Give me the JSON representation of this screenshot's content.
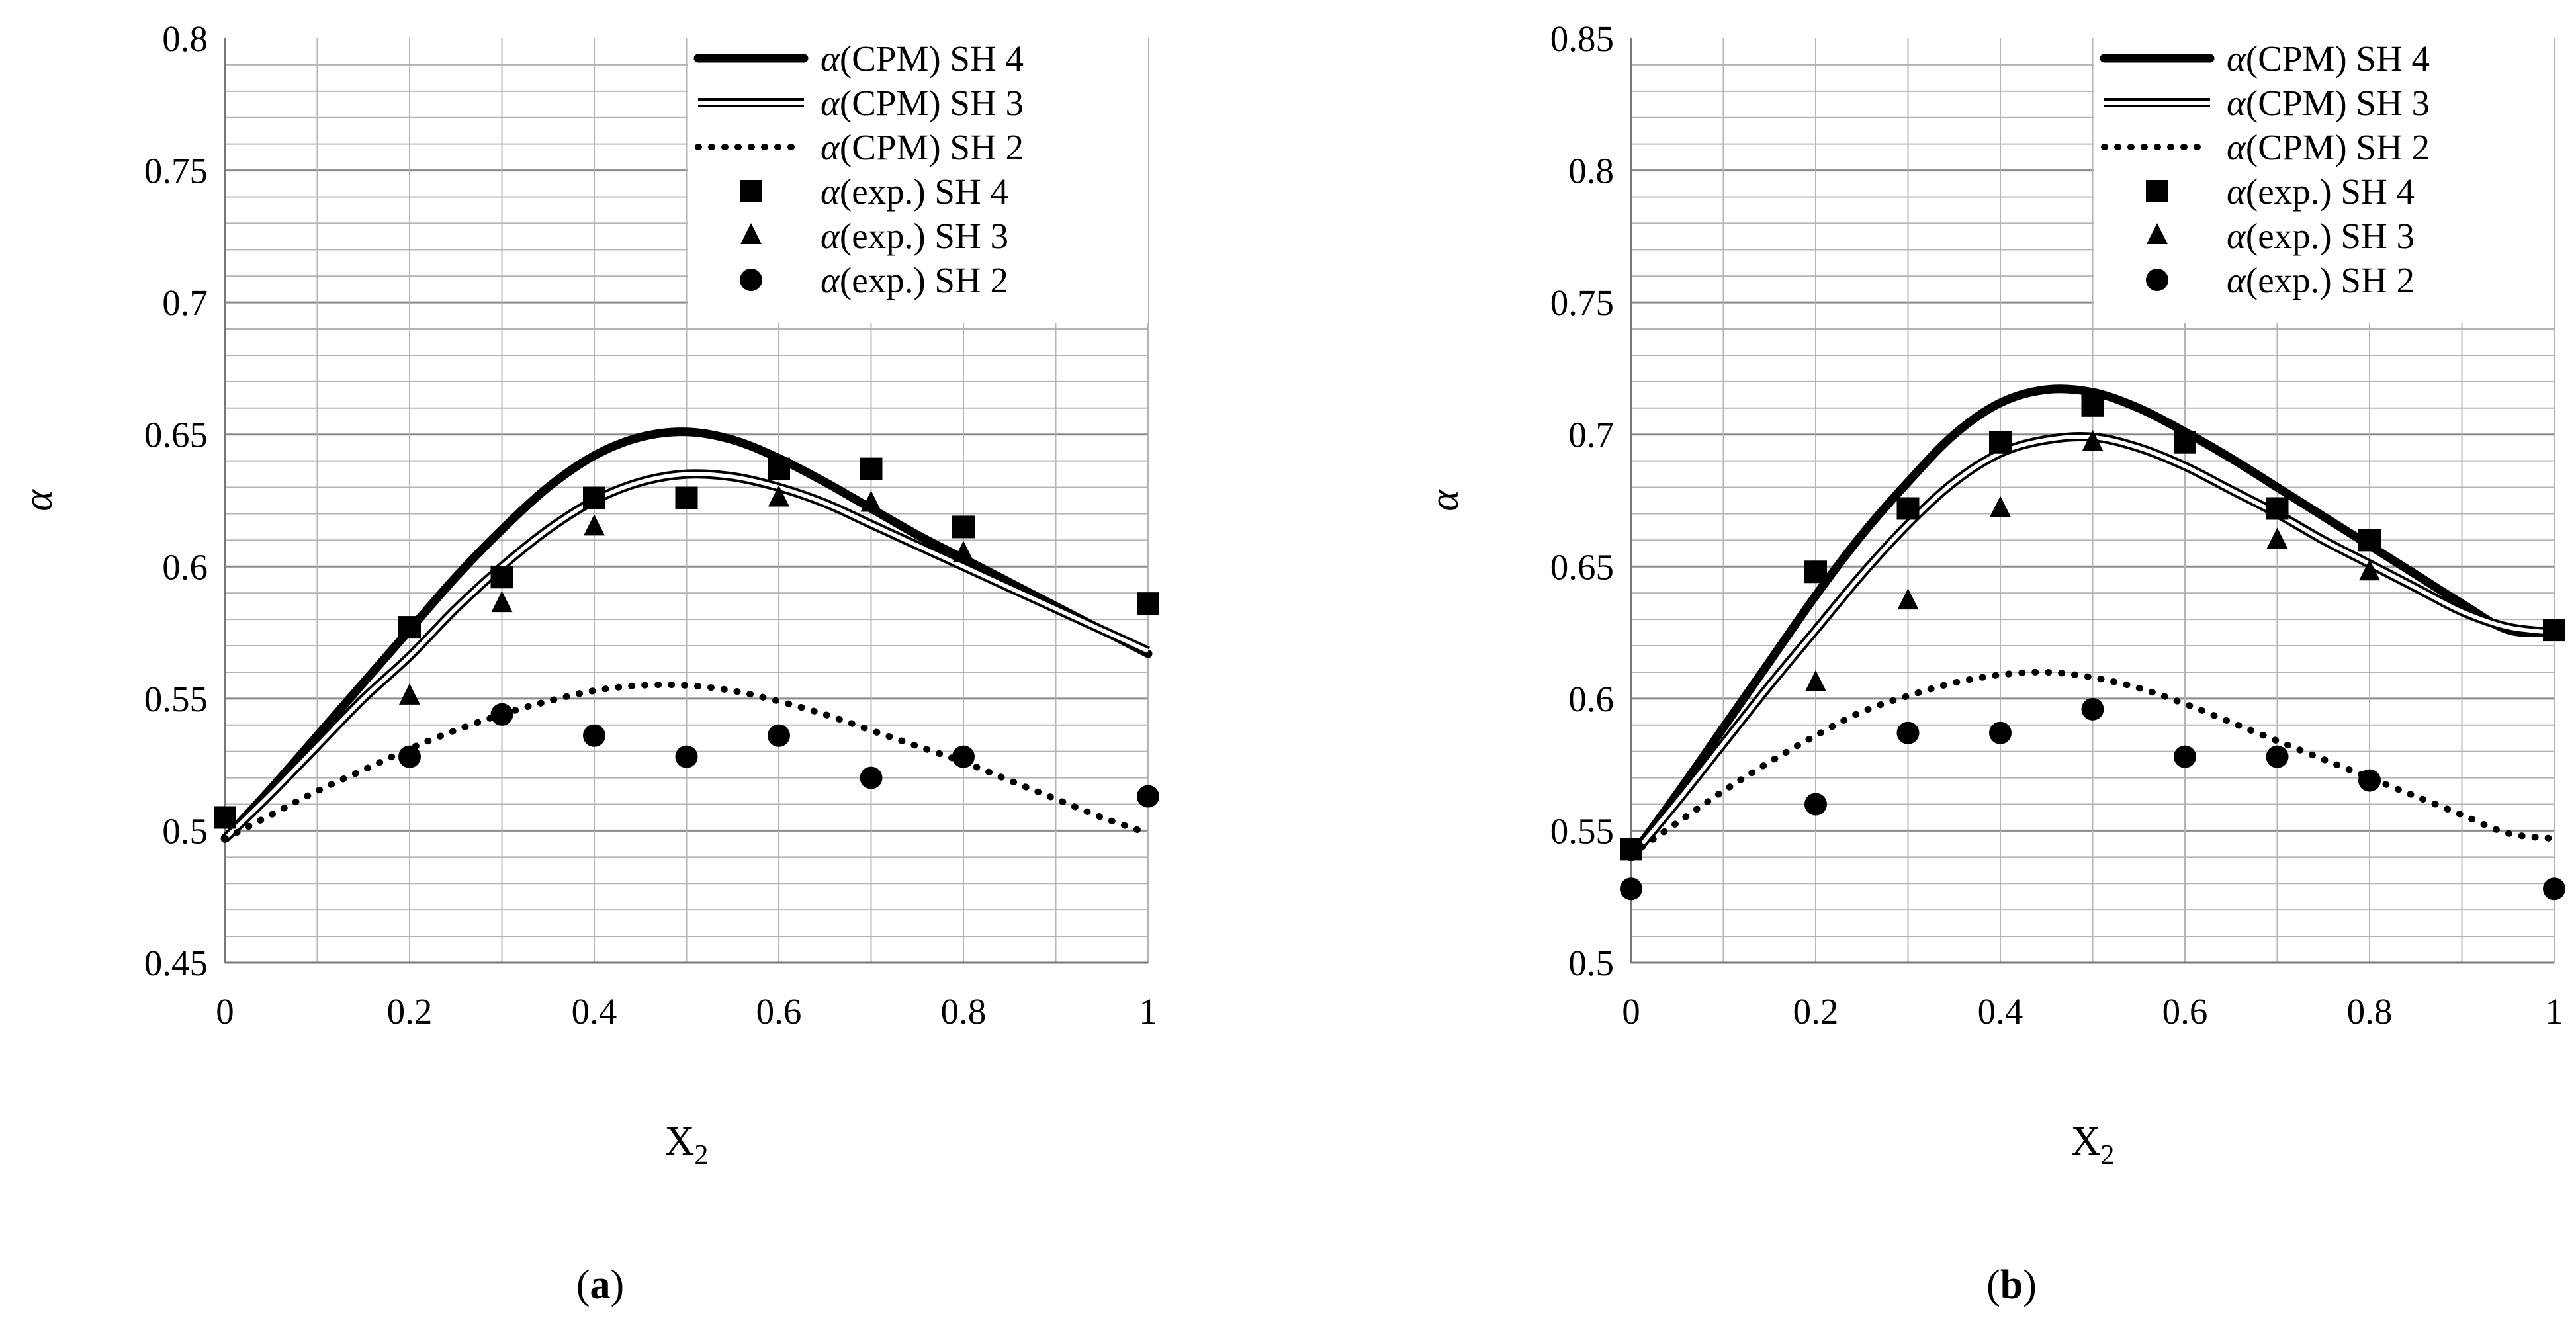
{
  "chart_data": [
    {
      "panel": "a",
      "type": "line",
      "label_open": "(",
      "label_letter": "a",
      "label_close": ")",
      "xlabel": "X",
      "xlabel_sub": "2",
      "ylabel": "α",
      "xlim": [
        0,
        1
      ],
      "ylim": [
        0.45,
        0.8
      ],
      "x_ticks": [
        0,
        0.2,
        0.4,
        0.6,
        0.8,
        1
      ],
      "x_tick_labels": [
        "0",
        "0.2",
        "0.4",
        "0.6",
        "0.8",
        "1"
      ],
      "y_ticks": [
        0.45,
        0.5,
        0.55,
        0.6,
        0.65,
        0.7,
        0.75,
        0.8
      ],
      "y_tick_labels": [
        "0.45",
        "0.5",
        "0.55",
        "0.6",
        "0.65",
        "0.7",
        "0.75",
        "0.8"
      ],
      "grid_x_step": 0.1,
      "grid_y_step": 0.01,
      "legend_position": "top-right",
      "curves": [
        {
          "name": "α(CPM) SH 4",
          "legend_prefix": "α",
          "legend_text": "(CPM) SH 4",
          "style": "thick",
          "x": [
            0,
            0.05,
            0.1,
            0.15,
            0.2,
            0.25,
            0.3,
            0.35,
            0.4,
            0.45,
            0.5,
            0.55,
            0.6,
            0.65,
            0.7,
            0.75,
            0.8,
            0.85,
            0.9,
            0.95,
            1
          ],
          "y": [
            0.497,
            0.516,
            0.536,
            0.556,
            0.576,
            0.596,
            0.614,
            0.63,
            0.642,
            0.649,
            0.651,
            0.648,
            0.641,
            0.632,
            0.622,
            0.612,
            0.603,
            0.594,
            0.585,
            0.576,
            0.567
          ]
        },
        {
          "name": "α(CPM) SH 3",
          "legend_prefix": "α",
          "legend_text": "(CPM) SH 3",
          "style": "double",
          "x": [
            0,
            0.05,
            0.1,
            0.15,
            0.2,
            0.25,
            0.3,
            0.35,
            0.4,
            0.45,
            0.5,
            0.55,
            0.6,
            0.65,
            0.7,
            0.75,
            0.8,
            0.85,
            0.9,
            0.95,
            1
          ],
          "y": [
            0.497,
            0.514,
            0.532,
            0.55,
            0.566,
            0.584,
            0.6,
            0.614,
            0.625,
            0.632,
            0.635,
            0.634,
            0.63,
            0.624,
            0.616,
            0.608,
            0.6,
            0.592,
            0.584,
            0.576,
            0.568
          ]
        },
        {
          "name": "α(CPM) SH 2",
          "legend_prefix": "α",
          "legend_text": "(CPM) SH 2",
          "style": "dotted",
          "x": [
            0,
            0.05,
            0.1,
            0.15,
            0.2,
            0.25,
            0.3,
            0.35,
            0.4,
            0.45,
            0.5,
            0.55,
            0.6,
            0.65,
            0.7,
            0.75,
            0.8,
            0.85,
            0.9,
            0.95,
            1
          ],
          "y": [
            0.497,
            0.506,
            0.515,
            0.523,
            0.531,
            0.538,
            0.544,
            0.549,
            0.553,
            0.555,
            0.555,
            0.553,
            0.549,
            0.544,
            0.538,
            0.532,
            0.526,
            0.519,
            0.512,
            0.505,
            0.499
          ]
        }
      ],
      "points": [
        {
          "name": "α(exp.) SH 4",
          "legend_prefix": "α",
          "legend_text": "(exp.) SH 4",
          "marker": "square",
          "x": [
            0,
            0.2,
            0.3,
            0.4,
            0.5,
            0.6,
            0.7,
            0.8,
            1
          ],
          "y": [
            0.505,
            0.577,
            0.596,
            0.626,
            0.626,
            0.637,
            0.637,
            0.615,
            0.586
          ]
        },
        {
          "name": "α(exp.) SH 3",
          "legend_prefix": "α",
          "legend_text": "(exp.) SH 3",
          "marker": "triangle",
          "x": [
            0.2,
            0.3,
            0.4,
            0.6,
            0.7,
            0.8
          ],
          "y": [
            0.551,
            0.586,
            0.615,
            0.626,
            0.624,
            0.605
          ]
        },
        {
          "name": "α(exp.) SH 2",
          "legend_prefix": "α",
          "legend_text": "(exp.) SH 2",
          "marker": "circle",
          "x": [
            0.2,
            0.3,
            0.4,
            0.5,
            0.6,
            0.7,
            0.8,
            1
          ],
          "y": [
            0.528,
            0.544,
            0.536,
            0.528,
            0.536,
            0.52,
            0.528,
            0.513
          ]
        }
      ]
    },
    {
      "panel": "b",
      "type": "line",
      "label_open": "(",
      "label_letter": "b",
      "label_close": ")",
      "xlabel": "X",
      "xlabel_sub": "2",
      "ylabel": "α",
      "xlim": [
        0,
        1
      ],
      "ylim": [
        0.5,
        0.85
      ],
      "x_ticks": [
        0,
        0.2,
        0.4,
        0.6,
        0.8,
        1
      ],
      "x_tick_labels": [
        "0",
        "0.2",
        "0.4",
        "0.6",
        "0.8",
        "1"
      ],
      "y_ticks": [
        0.5,
        0.55,
        0.6,
        0.65,
        0.7,
        0.75,
        0.8,
        0.85
      ],
      "y_tick_labels": [
        "0.5",
        "0.55",
        "0.6",
        "0.65",
        "0.7",
        "0.75",
        "0.8",
        "0.85"
      ],
      "grid_x_step": 0.1,
      "grid_y_step": 0.01,
      "legend_position": "top-right",
      "curves": [
        {
          "name": "α(CPM) SH 4",
          "legend_prefix": "α",
          "legend_text": "(CPM) SH 4",
          "style": "thick",
          "x": [
            0,
            0.05,
            0.1,
            0.15,
            0.2,
            0.25,
            0.3,
            0.35,
            0.4,
            0.45,
            0.5,
            0.55,
            0.6,
            0.65,
            0.7,
            0.75,
            0.8,
            0.85,
            0.9,
            0.95,
            1
          ],
          "y": [
            0.54,
            0.564,
            0.589,
            0.614,
            0.639,
            0.662,
            0.682,
            0.7,
            0.712,
            0.717,
            0.716,
            0.71,
            0.701,
            0.691,
            0.68,
            0.669,
            0.658,
            0.647,
            0.636,
            0.626,
            0.625
          ]
        },
        {
          "name": "α(CPM) SH 3",
          "legend_prefix": "α",
          "legend_text": "(CPM) SH 3",
          "style": "double",
          "x": [
            0,
            0.05,
            0.1,
            0.15,
            0.2,
            0.25,
            0.3,
            0.35,
            0.4,
            0.45,
            0.5,
            0.55,
            0.6,
            0.65,
            0.7,
            0.75,
            0.8,
            0.85,
            0.9,
            0.95,
            1
          ],
          "y": [
            0.54,
            0.561,
            0.583,
            0.605,
            0.626,
            0.647,
            0.666,
            0.682,
            0.693,
            0.698,
            0.699,
            0.695,
            0.688,
            0.679,
            0.67,
            0.66,
            0.651,
            0.642,
            0.633,
            0.627,
            0.625
          ]
        },
        {
          "name": "α(CPM) SH 2",
          "legend_prefix": "α",
          "legend_text": "(CPM) SH 2",
          "style": "dotted",
          "x": [
            0,
            0.05,
            0.1,
            0.15,
            0.2,
            0.25,
            0.3,
            0.35,
            0.4,
            0.45,
            0.5,
            0.55,
            0.6,
            0.65,
            0.7,
            0.75,
            0.8,
            0.85,
            0.9,
            0.95,
            1
          ],
          "y": [
            0.541,
            0.553,
            0.565,
            0.576,
            0.586,
            0.595,
            0.601,
            0.606,
            0.609,
            0.61,
            0.608,
            0.604,
            0.598,
            0.591,
            0.584,
            0.577,
            0.57,
            0.563,
            0.556,
            0.549,
            0.547
          ]
        }
      ],
      "points": [
        {
          "name": "α(exp.) SH 4",
          "legend_prefix": "α",
          "legend_text": "(exp.) SH 4",
          "marker": "square",
          "x": [
            0,
            0.2,
            0.3,
            0.4,
            0.5,
            0.6,
            0.7,
            0.8,
            1
          ],
          "y": [
            0.543,
            0.648,
            0.672,
            0.697,
            0.711,
            0.697,
            0.672,
            0.66,
            0.626
          ]
        },
        {
          "name": "α(exp.) SH 3",
          "legend_prefix": "α",
          "legend_text": "(exp.) SH 3",
          "marker": "triangle",
          "x": [
            0.2,
            0.3,
            0.4,
            0.5,
            0.7,
            0.8
          ],
          "y": [
            0.606,
            0.637,
            0.672,
            0.697,
            0.66,
            0.648
          ]
        },
        {
          "name": "α(exp.) SH 2",
          "legend_prefix": "α",
          "legend_text": "(exp.) SH 2",
          "marker": "circle",
          "x": [
            0,
            0.2,
            0.3,
            0.4,
            0.5,
            0.6,
            0.7,
            0.8,
            1
          ],
          "y": [
            0.528,
            0.56,
            0.587,
            0.587,
            0.596,
            0.578,
            0.578,
            0.569,
            0.528
          ]
        }
      ]
    }
  ]
}
